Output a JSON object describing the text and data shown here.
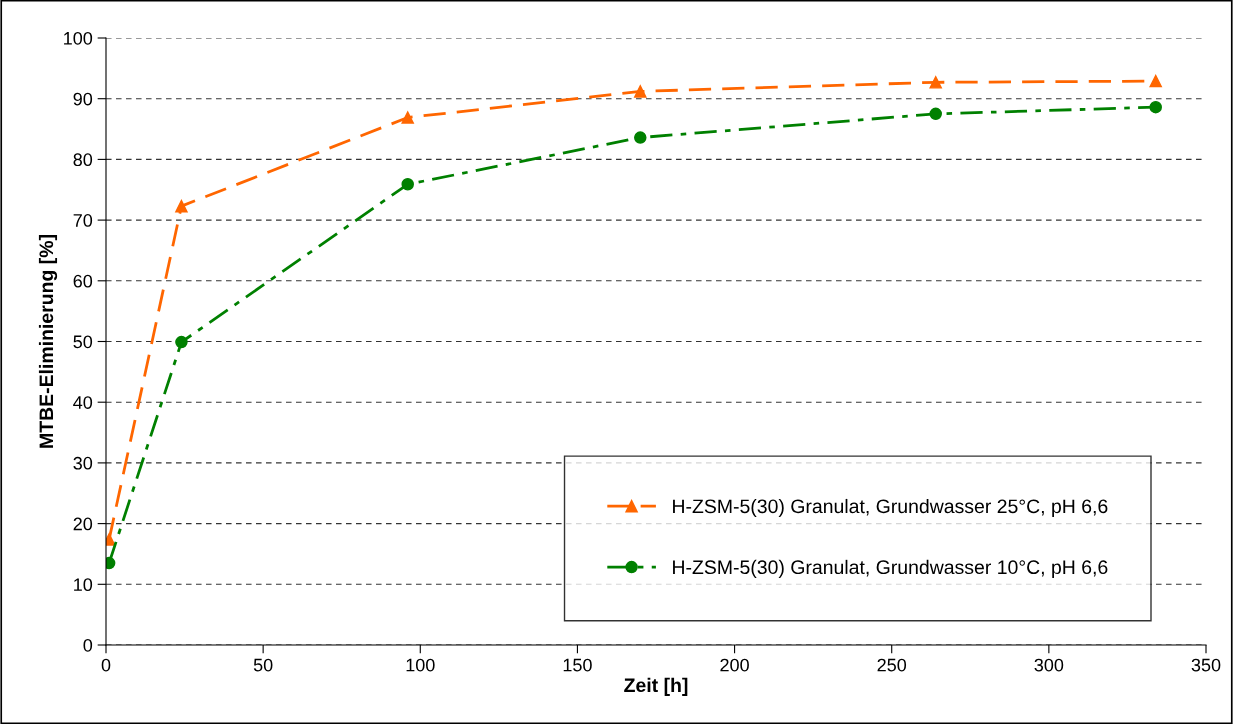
{
  "chart_data": {
    "type": "line",
    "xlabel": "Zeit [h]",
    "ylabel": "MTBE-Eliminierung [%]",
    "x": [
      1,
      24,
      96,
      170,
      264,
      334
    ],
    "series": [
      {
        "name": "H-ZSM-5(30) Granulat, Grundwasser 25°C, pH 6,6",
        "color": "#ff6600",
        "marker": "triangle",
        "line_style": "dashed",
        "values": [
          17.4,
          72.3,
          86.9,
          91.2,
          92.7,
          92.9
        ]
      },
      {
        "name": "H-ZSM-5(30) Granulat, Grundwasser 10°C, pH 6,6",
        "color": "#008000",
        "marker": "circle",
        "line_style": "dashdot",
        "values": [
          13.5,
          49.9,
          75.9,
          83.6,
          87.5,
          88.6
        ]
      }
    ],
    "xlim": [
      0,
      350
    ],
    "xticks": [
      0,
      50,
      100,
      150,
      200,
      250,
      300,
      350
    ],
    "ylim": [
      0,
      100
    ],
    "yticks": [
      0,
      10,
      20,
      30,
      40,
      50,
      60,
      70,
      80,
      90,
      100
    ],
    "grid": "y",
    "legend": "bottom right"
  }
}
